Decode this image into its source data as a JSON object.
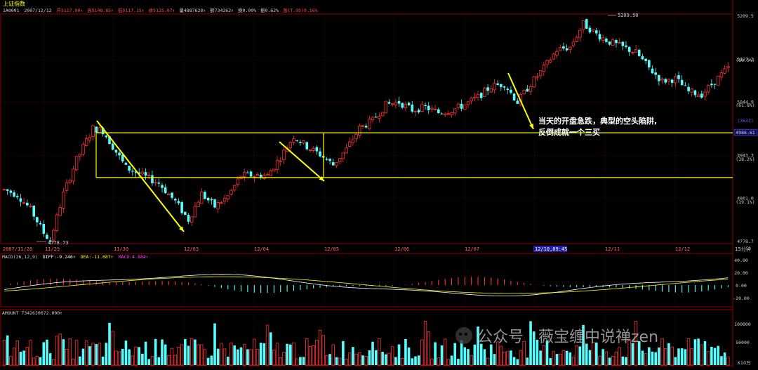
{
  "header": {
    "index_name": "上证指数",
    "code": "1A0001",
    "date": "2007/12/12",
    "quote_open": "开5117.90↑",
    "quote_high": "高5148.85↑",
    "quote_low": "低5117.15↑",
    "quote_close": "收5125.07↑",
    "quote_volume": "量4887628↑",
    "quote_amount": "额734262↑",
    "quote_turnover": "换0.00%",
    "quote_amplitude": "振0.62%",
    "quote_change": "涨(T.95)0.16%"
  },
  "price_axis": {
    "labels": [
      "5209.5",
      "5127.2",
      "(80.9%)",
      "5044.9",
      "(61.8%)",
      "4986.61",
      "(3633)",
      "4943.3",
      "(38.2%)",
      "4861.0",
      "(19.1%)",
      "4778.7"
    ]
  },
  "extremes": {
    "high_label": "5209.50",
    "low_label": "4778.73"
  },
  "time_axis": {
    "labels": [
      "2007/11/28",
      "11/29",
      "11/30",
      "12/03",
      "12/04",
      "12/05",
      "12/06",
      "12/07",
      "12/10,09:45",
      "12/11",
      "12/12",
      "15分钟"
    ]
  },
  "annotation": {
    "line1": "当天的开盘急跌，典型的空头陷阱,",
    "line2": "反倒成就一个三买"
  },
  "macd": {
    "title": "MACD(26,12,9)",
    "dif": "DIFF:-9.246↑",
    "dea": "DEA:-11.687↑",
    "macd_value": "MACD:4.884↑",
    "axis": [
      "40.00",
      "20.00",
      "0.00",
      "-20.00"
    ]
  },
  "amount": {
    "title": "AMOUNT 7342620672.000↑",
    "axis": [
      "100000",
      "50000",
      "X10万"
    ]
  },
  "watermark": "公众号 · 薇宝缠中说禅zen",
  "colors": {
    "up": "#ff3232",
    "down": "#54ffff",
    "box": "#ffff00",
    "arrow": "#ffff00",
    "grid": "#8b0000",
    "dif": "#ffffff",
    "dea": "#ffff00"
  },
  "chart_data": {
    "type": "candlestick",
    "interval": "15分钟",
    "y_range": [
      4778.7,
      5209.5
    ],
    "annotations": [
      {
        "type": "box",
        "price_high": 4986.6,
        "price_low": 4901.0
      },
      {
        "type": "label",
        "text": "当天的开盘急跌，典型的空头陷阱, 反倒成就一个三买"
      }
    ]
  }
}
